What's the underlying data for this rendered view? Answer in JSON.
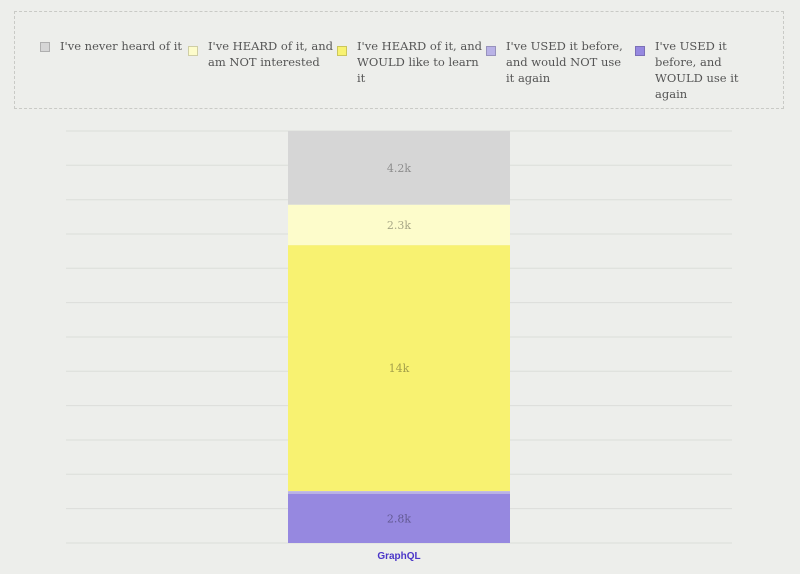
{
  "legend": [
    {
      "label": "I've never heard of it",
      "color": "#d6d6d6"
    },
    {
      "label": "I've HEARD of it, and am NOT interested",
      "color": "#fdfccb"
    },
    {
      "label": "I've HEARD of it, and WOULD like to learn it",
      "color": "#f8f271"
    },
    {
      "label": "I've USED it before, and would NOT use it again",
      "color": "#b9b2e6"
    },
    {
      "label": "I've USED it before, and WOULD use it again",
      "color": "#9688e0"
    }
  ],
  "chart_data": {
    "type": "bar",
    "stacked": true,
    "categories": [
      "GraphQL"
    ],
    "series": [
      {
        "name": "I've never heard of it",
        "values": [
          4200
        ],
        "label": "4.2k",
        "color": "#d6d6d6"
      },
      {
        "name": "I've HEARD of it, and am NOT interested",
        "values": [
          2300
        ],
        "label": "2.3k",
        "color": "#fdfccb"
      },
      {
        "name": "I've HEARD of it, and WOULD like to learn it",
        "values": [
          14000
        ],
        "label": "14k",
        "color": "#f8f271"
      },
      {
        "name": "I've USED it before, and would NOT use it again",
        "values": [
          150
        ],
        "label": "",
        "color": "#b9b2e6"
      },
      {
        "name": "I've USED it before, and WOULD use it again",
        "values": [
          2800
        ],
        "label": "2.8k",
        "color": "#9688e0"
      }
    ],
    "grid": true,
    "legend_position": "top"
  }
}
